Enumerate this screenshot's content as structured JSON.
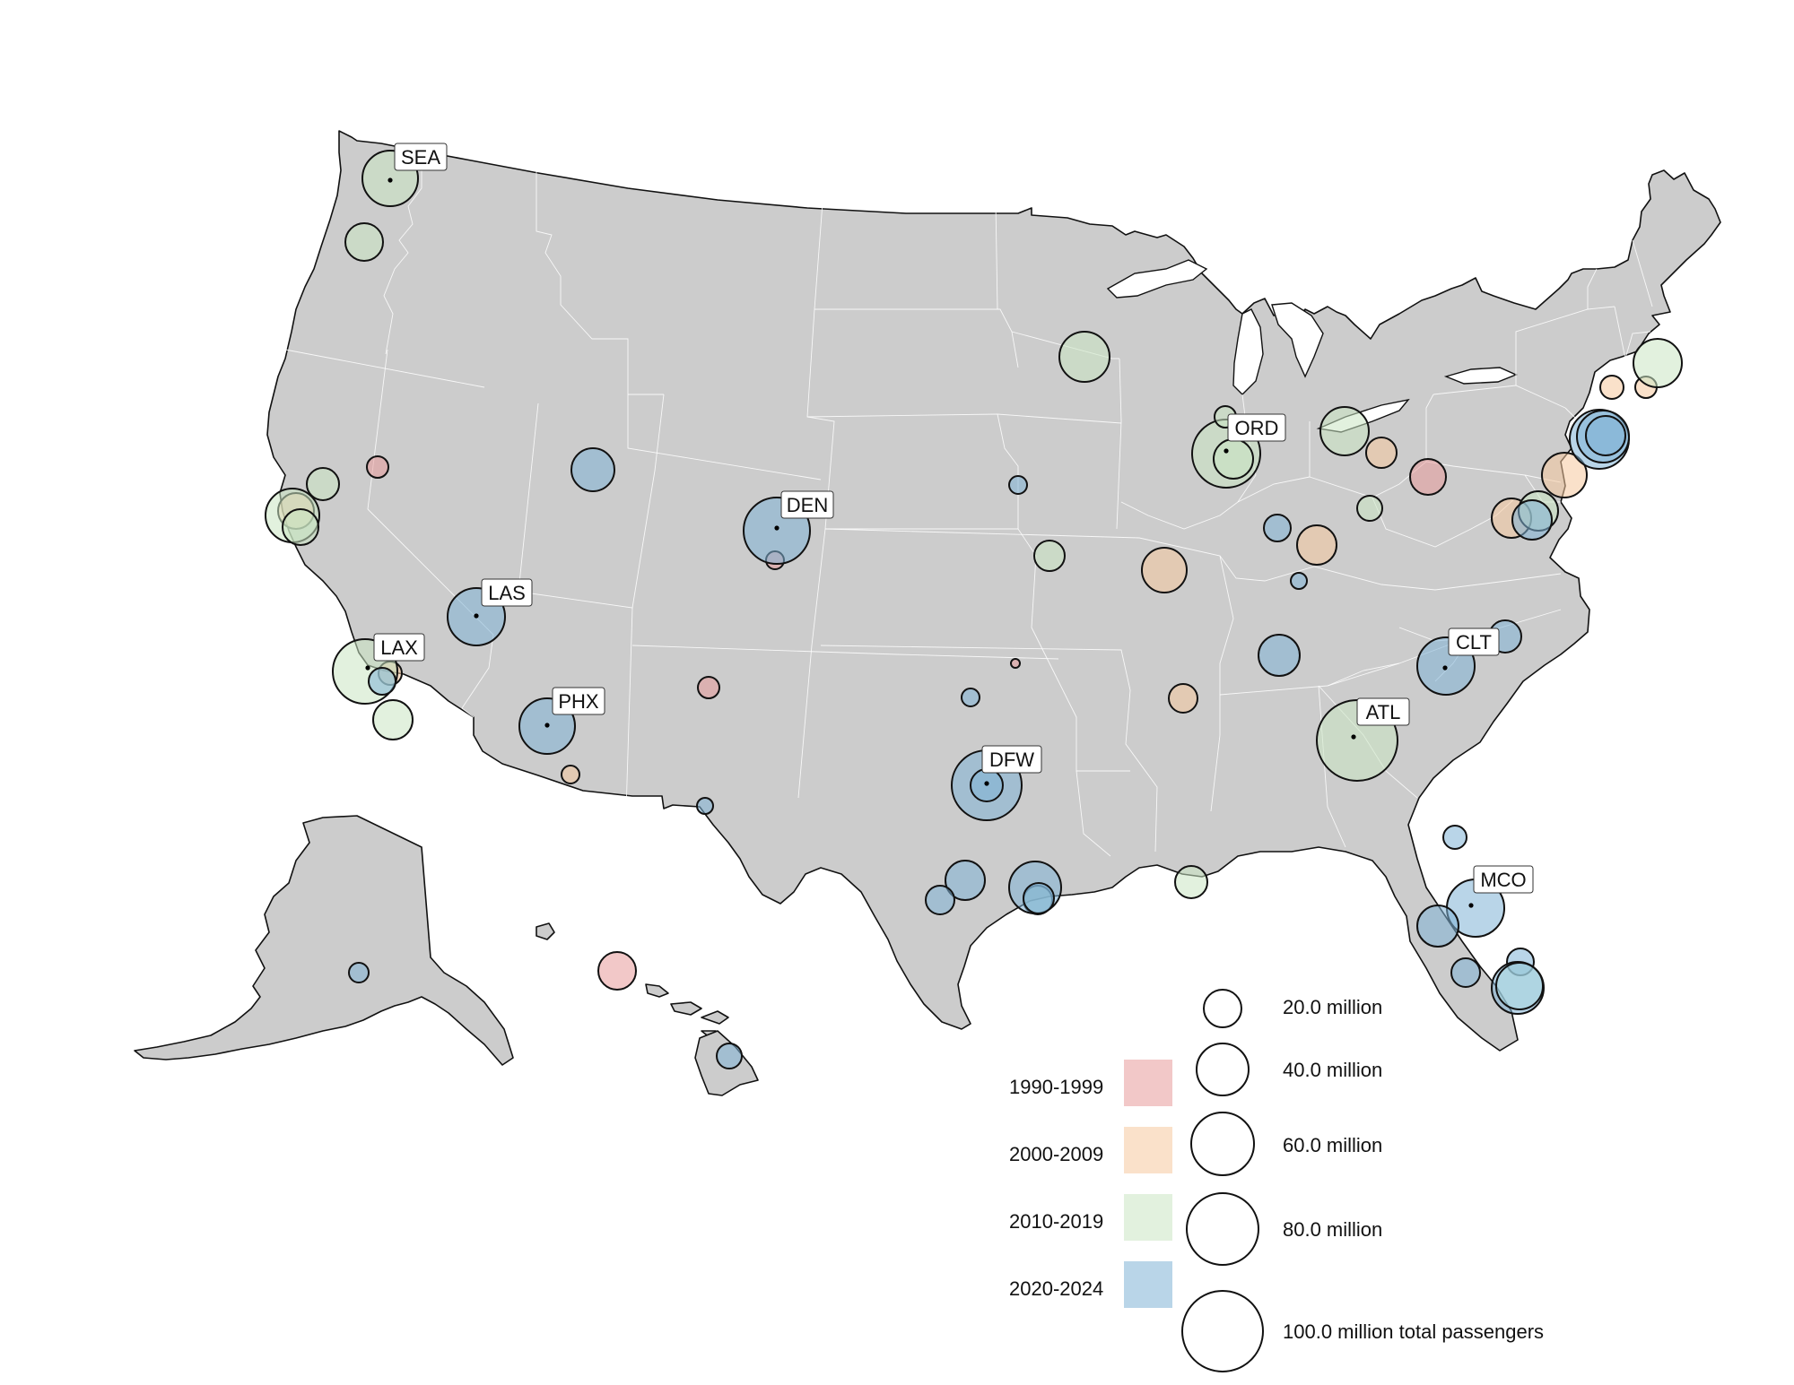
{
  "map": {
    "labeled_airports": [
      {
        "code": "SEA"
      },
      {
        "code": "DEN"
      },
      {
        "code": "LAS"
      },
      {
        "code": "LAX"
      },
      {
        "code": "PHX"
      },
      {
        "code": "DFW"
      },
      {
        "code": "ORD"
      },
      {
        "code": "ATL"
      },
      {
        "code": "CLT"
      },
      {
        "code": "MCO"
      }
    ],
    "periods": [
      {
        "label": "1990-1999",
        "color": "#e79a9a"
      },
      {
        "label": "2000-2009",
        "color": "#f5c89f"
      },
      {
        "label": "2010-2019",
        "color": "#cbe5c3"
      },
      {
        "label": "2020-2024",
        "color": "#7fb2d6"
      }
    ],
    "size_legend": [
      {
        "label": "20.0 million",
        "value_million": 20
      },
      {
        "label": "40.0 million",
        "value_million": 40
      },
      {
        "label": "60.0 million",
        "value_million": 60
      },
      {
        "label": "80.0 million",
        "value_million": 80
      },
      {
        "label": "100.0 million total passengers",
        "value_million": 100
      }
    ]
  }
}
